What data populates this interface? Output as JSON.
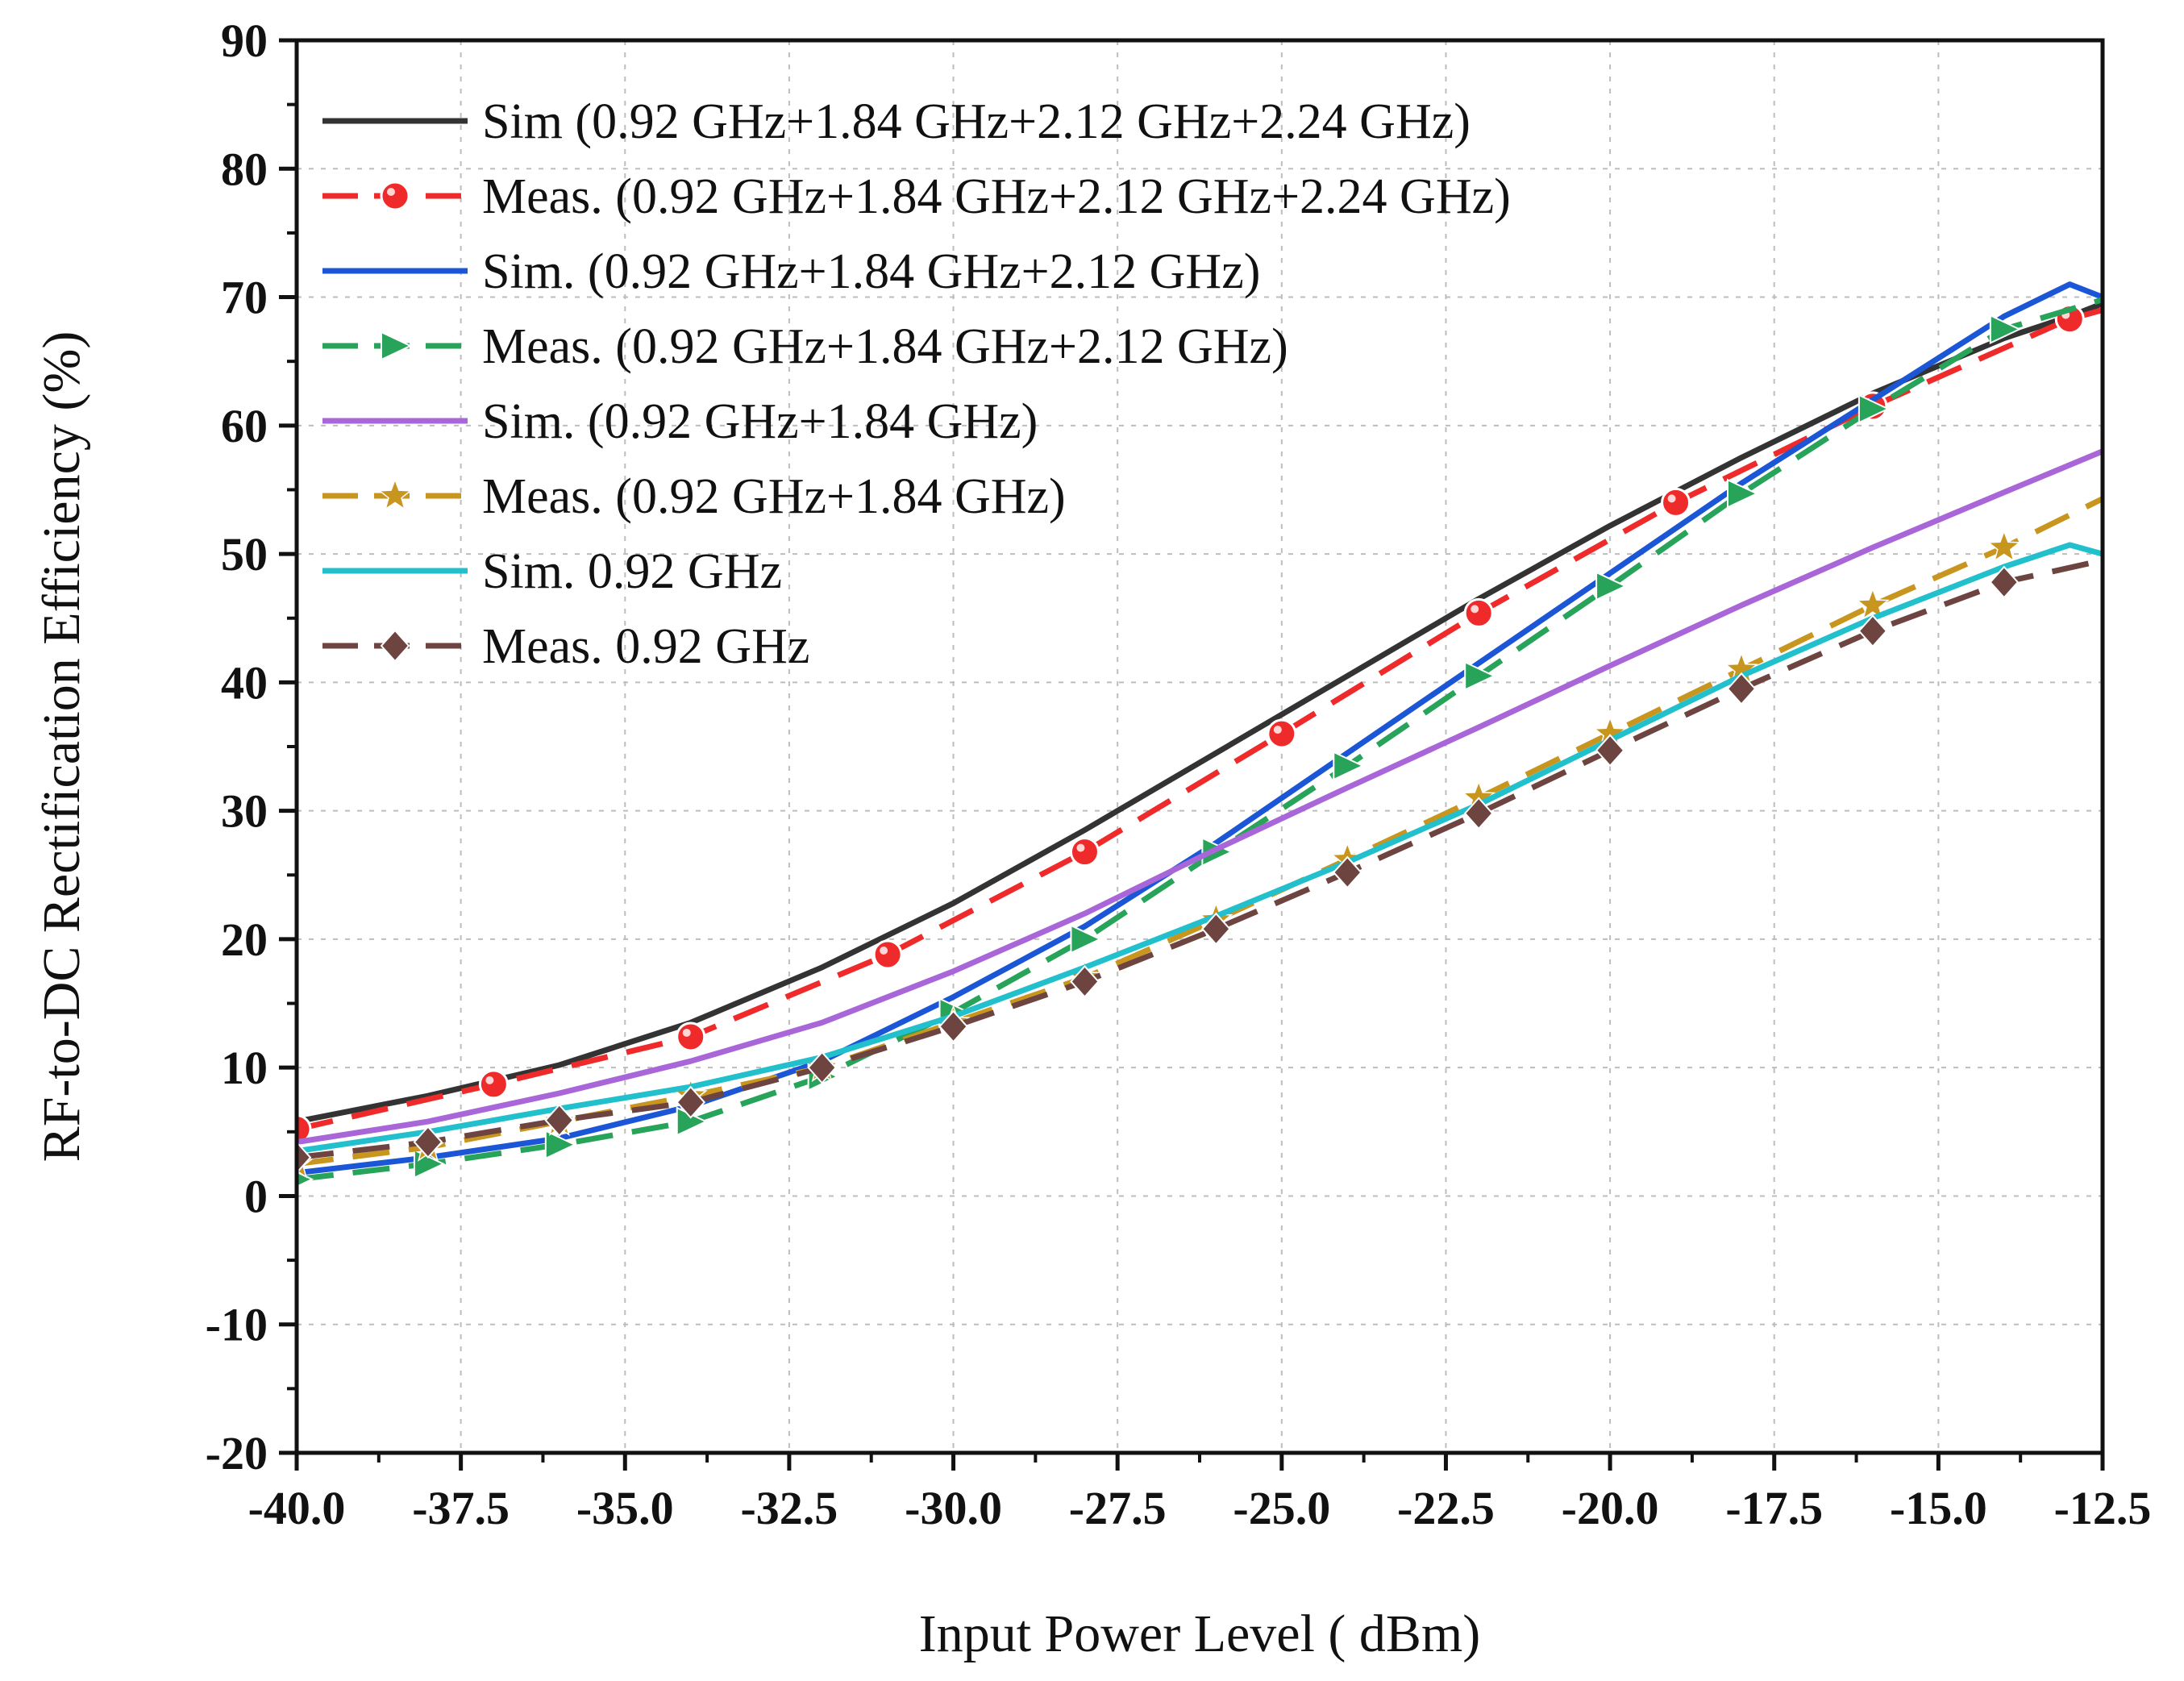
{
  "chart_data": {
    "type": "line",
    "title": "",
    "xlabel": "Input Power Level ( dBm)",
    "ylabel": "RF-to-DC Rectification Efficiency (%)",
    "xlim": [
      -40,
      -12.5
    ],
    "ylim": [
      -20,
      90
    ],
    "grid": true,
    "legend_position": "top-left",
    "x_ticks": [
      -40,
      -37.5,
      -35,
      -32.5,
      -30,
      -27.5,
      -25,
      -22.5,
      -20,
      -17.5,
      -15,
      -12.5
    ],
    "x_tick_labels": [
      "-40.0",
      "-37.5",
      "-35.0",
      "-32.5",
      "-30.0",
      "-27.5",
      "-25.0",
      "-22.5",
      "-20.0",
      "-17.5",
      "-15.0",
      "-12.5"
    ],
    "y_ticks": [
      -20,
      -10,
      0,
      10,
      20,
      30,
      40,
      50,
      60,
      70,
      80,
      90
    ],
    "y_tick_labels": [
      "-20",
      "-10",
      "0",
      "10",
      "20",
      "30",
      "40",
      "50",
      "60",
      "70",
      "80",
      "90"
    ],
    "series": [
      {
        "name": "Sim (0.92 GHz+1.84 GHz+2.12 GHz+2.24 GHz)",
        "color": "#333333",
        "dash": "solid",
        "marker": "none",
        "x": [
          -40,
          -38,
          -36,
          -34,
          -32,
          -30,
          -28,
          -26,
          -24,
          -22,
          -20,
          -18,
          -16,
          -14,
          -13,
          -12.5
        ],
        "y": [
          5.8,
          7.8,
          10.2,
          13.5,
          17.8,
          22.8,
          28.5,
          34.5,
          40.5,
          46.5,
          52.2,
          57.5,
          62.5,
          66.8,
          68.5,
          69.5
        ]
      },
      {
        "name": "Meas. (0.92 GHz+1.84 GHz+2.12 GHz+2.24 GHz)",
        "color": "#ee2a2a",
        "dash": "dashed",
        "marker": "circle",
        "x": [
          -40,
          -37,
          -34,
          -31,
          -28,
          -25,
          -22,
          -19,
          -16,
          -13,
          -12.5
        ],
        "y": [
          5.2,
          8.7,
          12.4,
          18.8,
          26.8,
          36.0,
          45.4,
          54.0,
          61.5,
          68.3,
          69.0
        ]
      },
      {
        "name": "Sim. (0.92 GHz+1.84 GHz+2.12 GHz)",
        "color": "#1a56d6",
        "dash": "solid",
        "marker": "none",
        "x": [
          -40,
          -38,
          -36,
          -34,
          -32,
          -30,
          -28,
          -26,
          -24,
          -22,
          -20,
          -18,
          -16,
          -14,
          -13,
          -12.5
        ],
        "y": [
          1.8,
          3.0,
          4.5,
          7.0,
          10.5,
          15.5,
          21.0,
          27.5,
          34.5,
          41.5,
          48.5,
          55.5,
          62.0,
          68.5,
          71.0,
          70.0
        ]
      },
      {
        "name": "Meas. (0.92 GHz+1.84 GHz+2.12 GHz)",
        "color": "#27a35a",
        "dash": "dashed",
        "marker": "triangle-right",
        "x": [
          -40,
          -38,
          -36,
          -34,
          -32,
          -30,
          -28,
          -26,
          -24,
          -22,
          -20,
          -18,
          -16,
          -14,
          -12.5
        ],
        "y": [
          1.3,
          2.5,
          4.0,
          5.8,
          9.3,
          14.3,
          20.0,
          26.8,
          33.5,
          40.5,
          47.5,
          54.7,
          61.3,
          67.5,
          69.8
        ]
      },
      {
        "name": "Sim. (0.92 GHz+1.84 GHz)",
        "color": "#a866d8",
        "dash": "solid",
        "marker": "none",
        "x": [
          -40,
          -38,
          -36,
          -34,
          -32,
          -30,
          -28,
          -26,
          -24,
          -22,
          -20,
          -18,
          -16,
          -14,
          -12.5
        ],
        "y": [
          4.2,
          5.8,
          8.0,
          10.5,
          13.5,
          17.5,
          22.0,
          27.0,
          31.8,
          36.5,
          41.3,
          46.0,
          50.5,
          54.8,
          58.0
        ]
      },
      {
        "name": "Meas. (0.92 GHz+1.84 GHz)",
        "color": "#c8961e",
        "dash": "dashed",
        "marker": "star",
        "x": [
          -40,
          -38,
          -36,
          -34,
          -32,
          -30,
          -28,
          -26,
          -24,
          -22,
          -20,
          -18,
          -16,
          -14,
          -12.5
        ],
        "y": [
          2.5,
          3.8,
          5.8,
          7.8,
          10.0,
          13.5,
          17.0,
          21.5,
          26.2,
          31.0,
          36.0,
          41.0,
          46.0,
          50.5,
          54.3
        ]
      },
      {
        "name": "Sim. 0.92 GHz",
        "color": "#22c0cc",
        "dash": "solid",
        "marker": "none",
        "x": [
          -40,
          -38,
          -36,
          -34,
          -32,
          -30,
          -28,
          -26,
          -24,
          -22,
          -20,
          -18,
          -16,
          -14,
          -13,
          -12.5
        ],
        "y": [
          3.5,
          5.0,
          6.8,
          8.5,
          10.8,
          14.0,
          17.8,
          21.8,
          26.0,
          30.5,
          35.5,
          40.5,
          45.0,
          49.0,
          50.7,
          50.0
        ]
      },
      {
        "name": "Meas. 0.92 GHz",
        "color": "#6e4440",
        "dash": "dashed",
        "marker": "diamond",
        "x": [
          -40,
          -38,
          -36,
          -34,
          -32,
          -30,
          -28,
          -26,
          -24,
          -22,
          -20,
          -18,
          -16,
          -14,
          -12.5
        ],
        "y": [
          3.0,
          4.2,
          5.9,
          7.3,
          10.0,
          13.2,
          16.7,
          20.8,
          25.2,
          29.8,
          34.7,
          39.5,
          44.0,
          47.8,
          49.5
        ]
      }
    ]
  }
}
